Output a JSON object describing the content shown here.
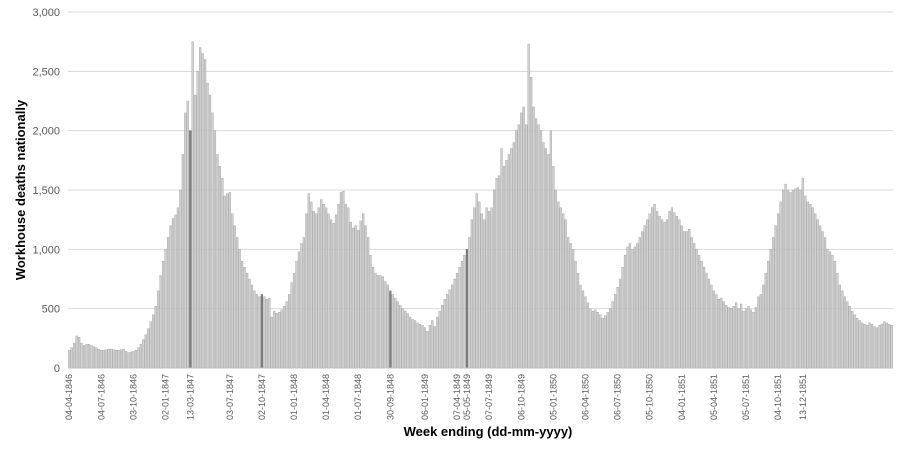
{
  "chart_data": {
    "type": "bar",
    "title": "",
    "xlabel": "Week ending (dd-mm-yyyy)",
    "ylabel": "Workhouse deaths nationally",
    "ylim": [
      0,
      3000
    ],
    "y_ticks": [
      0,
      500,
      1000,
      1500,
      2000,
      2500,
      3000
    ],
    "y_tick_labels": [
      "0",
      "500",
      "1,000",
      "1,500",
      "2,000",
      "2,500",
      "3,000"
    ],
    "grid": true,
    "legend": "none",
    "colors": {
      "bar": "#d0d0d0",
      "bar_edge": "#8c8c8c",
      "highlight": "#7f7f7f"
    },
    "x_tick_labels": [
      "04-04-1846",
      "04-07-1846",
      "03-10-1846",
      "02-01-1847",
      "13-03-1847",
      "03-07-1847",
      "02-10-1847",
      "01-01-1848",
      "01-04-1848",
      "01-07-1848",
      "30-09-1848",
      "06-01-1849",
      "07-04-1849",
      "05-05-1849",
      "07-07-1849",
      "06-10-1849",
      "05-01-1850",
      "06-04-1850",
      "06-07-1850",
      "05-10-1850",
      "04-01-1851",
      "05-04-1851",
      "05-07-1851",
      "04-10-1851",
      "13-12-1851"
    ],
    "x_tick_weeks": [
      0,
      13,
      26,
      39,
      49,
      65,
      78,
      91,
      104,
      117,
      130,
      144,
      157,
      161,
      170,
      183,
      196,
      209,
      222,
      235,
      248,
      261,
      274,
      287,
      297
    ],
    "highlight_weeks": [
      49,
      78,
      130,
      161
    ],
    "values": [
      150,
      170,
      210,
      270,
      260,
      210,
      190,
      200,
      200,
      190,
      180,
      170,
      160,
      150,
      150,
      155,
      160,
      160,
      155,
      150,
      150,
      155,
      160,
      140,
      130,
      135,
      140,
      150,
      170,
      200,
      240,
      280,
      330,
      390,
      450,
      520,
      650,
      780,
      900,
      1000,
      1100,
      1200,
      1260,
      1290,
      1350,
      1500,
      1800,
      2150,
      2250,
      2000,
      2750,
      2300,
      2500,
      2700,
      2650,
      2600,
      2400,
      2300,
      2150,
      2000,
      1800,
      1700,
      1600,
      1450,
      1470,
      1480,
      1300,
      1200,
      1100,
      1000,
      900,
      850,
      800,
      750,
      700,
      650,
      620,
      600,
      620,
      600,
      580,
      590,
      430,
      480,
      460,
      470,
      490,
      520,
      560,
      620,
      720,
      800,
      900,
      980,
      1050,
      1100,
      1300,
      1470,
      1400,
      1320,
      1300,
      1350,
      1420,
      1380,
      1350,
      1300,
      1250,
      1220,
      1290,
      1380,
      1480,
      1490,
      1380,
      1350,
      1230,
      1180,
      1200,
      1160,
      1240,
      1300,
      1200,
      1100,
      950,
      850,
      800,
      780,
      780,
      770,
      730,
      700,
      650,
      620,
      590,
      560,
      530,
      500,
      480,
      460,
      430,
      410,
      400,
      380,
      370,
      360,
      340,
      310,
      360,
      400,
      350,
      430,
      480,
      530,
      580,
      620,
      660,
      700,
      750,
      800,
      850,
      900,
      950,
      1000,
      1100,
      1250,
      1350,
      1470,
      1400,
      1300,
      1250,
      1350,
      1320,
      1350,
      1500,
      1600,
      1620,
      1850,
      1700,
      1750,
      1800,
      1850,
      1900,
      2000,
      2050,
      2150,
      2200,
      2050,
      2730,
      2450,
      2200,
      2100,
      2050,
      2000,
      1900,
      1850,
      1800,
      2000,
      1700,
      1500,
      1400,
      1350,
      1300,
      1250,
      1100,
      1050,
      1000,
      900,
      800,
      700,
      650,
      600,
      550,
      500,
      480,
      490,
      470,
      450,
      420,
      440,
      470,
      500,
      560,
      620,
      680,
      750,
      850,
      950,
      1020,
      1050,
      1000,
      1020,
      1050,
      1100,
      1150,
      1200,
      1250,
      1300,
      1350,
      1380,
      1320,
      1280,
      1250,
      1230,
      1250,
      1320,
      1350,
      1310,
      1280,
      1250,
      1200,
      1150,
      1150,
      1170,
      1100,
      1050,
      1000,
      950,
      900,
      850,
      800,
      750,
      700,
      650,
      620,
      580,
      590,
      560,
      530,
      510,
      500,
      520,
      550,
      500,
      540,
      480,
      500,
      520,
      490,
      470,
      510,
      600,
      620,
      700,
      800,
      900,
      1000,
      1100,
      1200,
      1300,
      1400,
      1500,
      1550,
      1500,
      1480,
      1500,
      1510,
      1520,
      1500,
      1600,
      1450,
      1400,
      1380,
      1350,
      1300,
      1250,
      1200,
      1150,
      1100,
      1000,
      980,
      950,
      900,
      800,
      700,
      650,
      600,
      560,
      520,
      480,
      450,
      420,
      400,
      380,
      370,
      360,
      380,
      370,
      350,
      340,
      360,
      370,
      390,
      380,
      370,
      360
    ]
  }
}
